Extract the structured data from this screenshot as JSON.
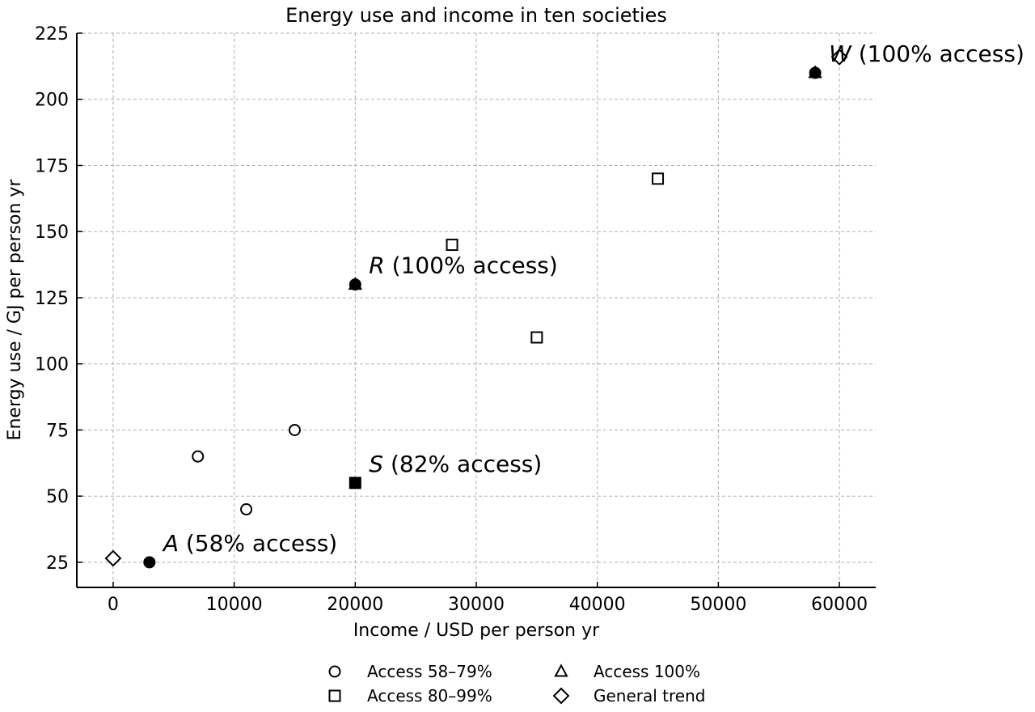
{
  "chart_data": {
    "type": "scatter",
    "title": "Energy use and income in ten societies",
    "xlabel": "Income / USD per person yr",
    "ylabel": "Energy use / GJ per person yr",
    "xlim": [
      -3000,
      63000
    ],
    "ylim": [
      15.5,
      225
    ],
    "xticks": [
      0,
      10000,
      20000,
      30000,
      40000,
      50000,
      60000
    ],
    "yticks": [
      25,
      50,
      75,
      100,
      125,
      150,
      175,
      200,
      225
    ],
    "grid": true,
    "legend_position": "bottom-center",
    "legend": [
      {
        "label": "Access 58–79%",
        "marker": "circle"
      },
      {
        "label": "Access 100%",
        "marker": "triangle"
      },
      {
        "label": "Access 80–99%",
        "marker": "square"
      },
      {
        "label": "General trend",
        "marker": "diamond"
      }
    ],
    "series": [
      {
        "marker": "circle",
        "points": [
          {
            "x": 7000,
            "y": 65
          },
          {
            "x": 11000,
            "y": 45
          },
          {
            "x": 15000,
            "y": 75
          }
        ]
      },
      {
        "marker": "square",
        "points": [
          {
            "x": 28000,
            "y": 145
          },
          {
            "x": 35000,
            "y": 110
          },
          {
            "x": 45000,
            "y": 170
          }
        ]
      },
      {
        "marker": "diamond",
        "points": [
          {
            "x": 0,
            "y": 26.5
          },
          {
            "x": 60000,
            "y": 216
          }
        ]
      },
      {
        "marker": "triangle",
        "filled": true,
        "points": [
          {
            "x": 20000,
            "y": 130
          },
          {
            "x": 58000,
            "y": 210
          }
        ]
      },
      {
        "marker": "square",
        "filled": true,
        "points": [
          {
            "x": 20000,
            "y": 55
          }
        ]
      },
      {
        "marker": "circle",
        "filled": true,
        "points": [
          {
            "x": 3000,
            "y": 25
          },
          {
            "x": 20000,
            "y": 130
          },
          {
            "x": 58000,
            "y": 210
          }
        ]
      }
    ],
    "annotations": [
      {
        "letter": "A",
        "text": " (58% access)",
        "x": 3000,
        "y": 25
      },
      {
        "letter": "S",
        "text": " (82% access)",
        "x": 20000,
        "y": 55
      },
      {
        "letter": "R",
        "text": " (100% access)",
        "x": 20000,
        "y": 130
      },
      {
        "letter": "W",
        "text": " (100% access)",
        "x": 58000,
        "y": 210
      }
    ],
    "colors": {
      "marker": "#000000",
      "grid": "#b0b0b0",
      "axis": "#000000"
    }
  }
}
